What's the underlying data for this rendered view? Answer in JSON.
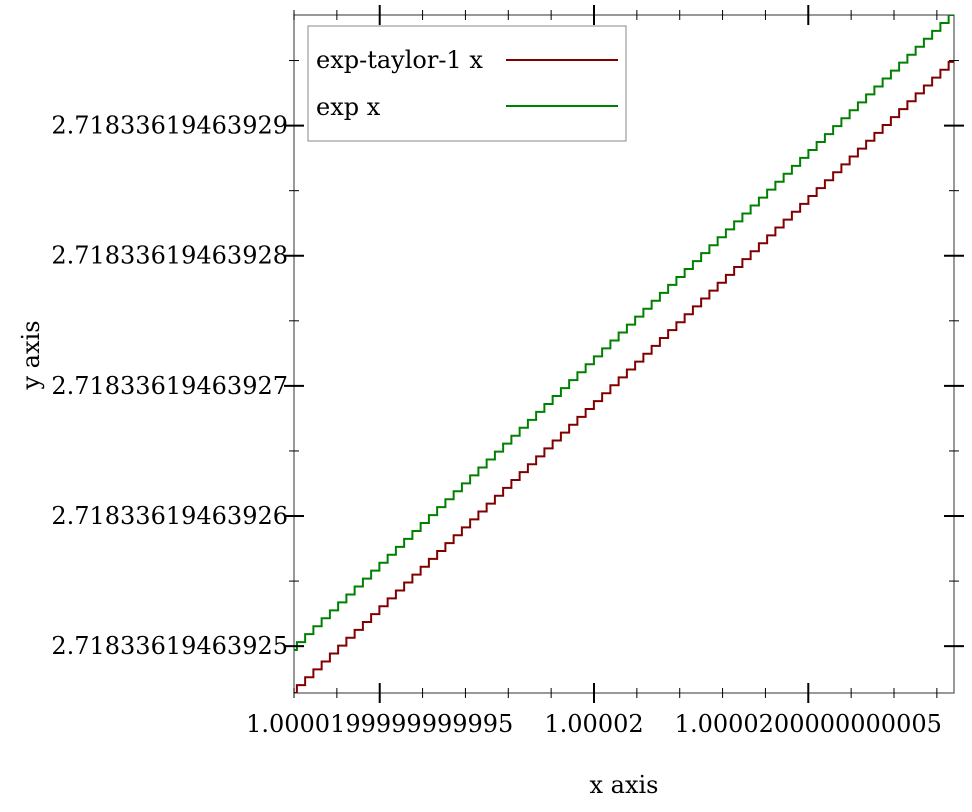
{
  "chart_data": {
    "type": "line",
    "title": "",
    "xlabel": "x axis",
    "ylabel": "y axis",
    "x_ticks": [
      {
        "value": 0.9999999995,
        "label": "1.0000199999999995"
      },
      {
        "value": 1.0,
        "label": "1.00002"
      },
      {
        "value": 1.0000000005,
        "label": "1.0000200000000005"
      }
    ],
    "y_ticks": [
      {
        "value": 25,
        "label": "2.71833619463925"
      },
      {
        "value": 26,
        "label": "2.71833619463926"
      },
      {
        "value": 27,
        "label": "2.71833619463927"
      },
      {
        "value": 28,
        "label": "2.71833619463928"
      },
      {
        "value": 29,
        "label": "2.71833619463929"
      }
    ],
    "xlim": [
      0.9999999993,
      1.00000000084
    ],
    "ylim": [
      24.64,
      29.85
    ],
    "grid": false,
    "legend_position": "top-left",
    "series": [
      {
        "name": "exp-taylor-1 x",
        "color": "#800000",
        "x": [
          0.9999999993,
          1.00000000084
        ],
        "y": [
          24.64,
          29.49
        ]
      },
      {
        "name": "exp x",
        "color": "#008000",
        "x": [
          0.9999999993,
          1.00000000084
        ],
        "y": [
          24.97,
          29.85
        ]
      }
    ]
  }
}
